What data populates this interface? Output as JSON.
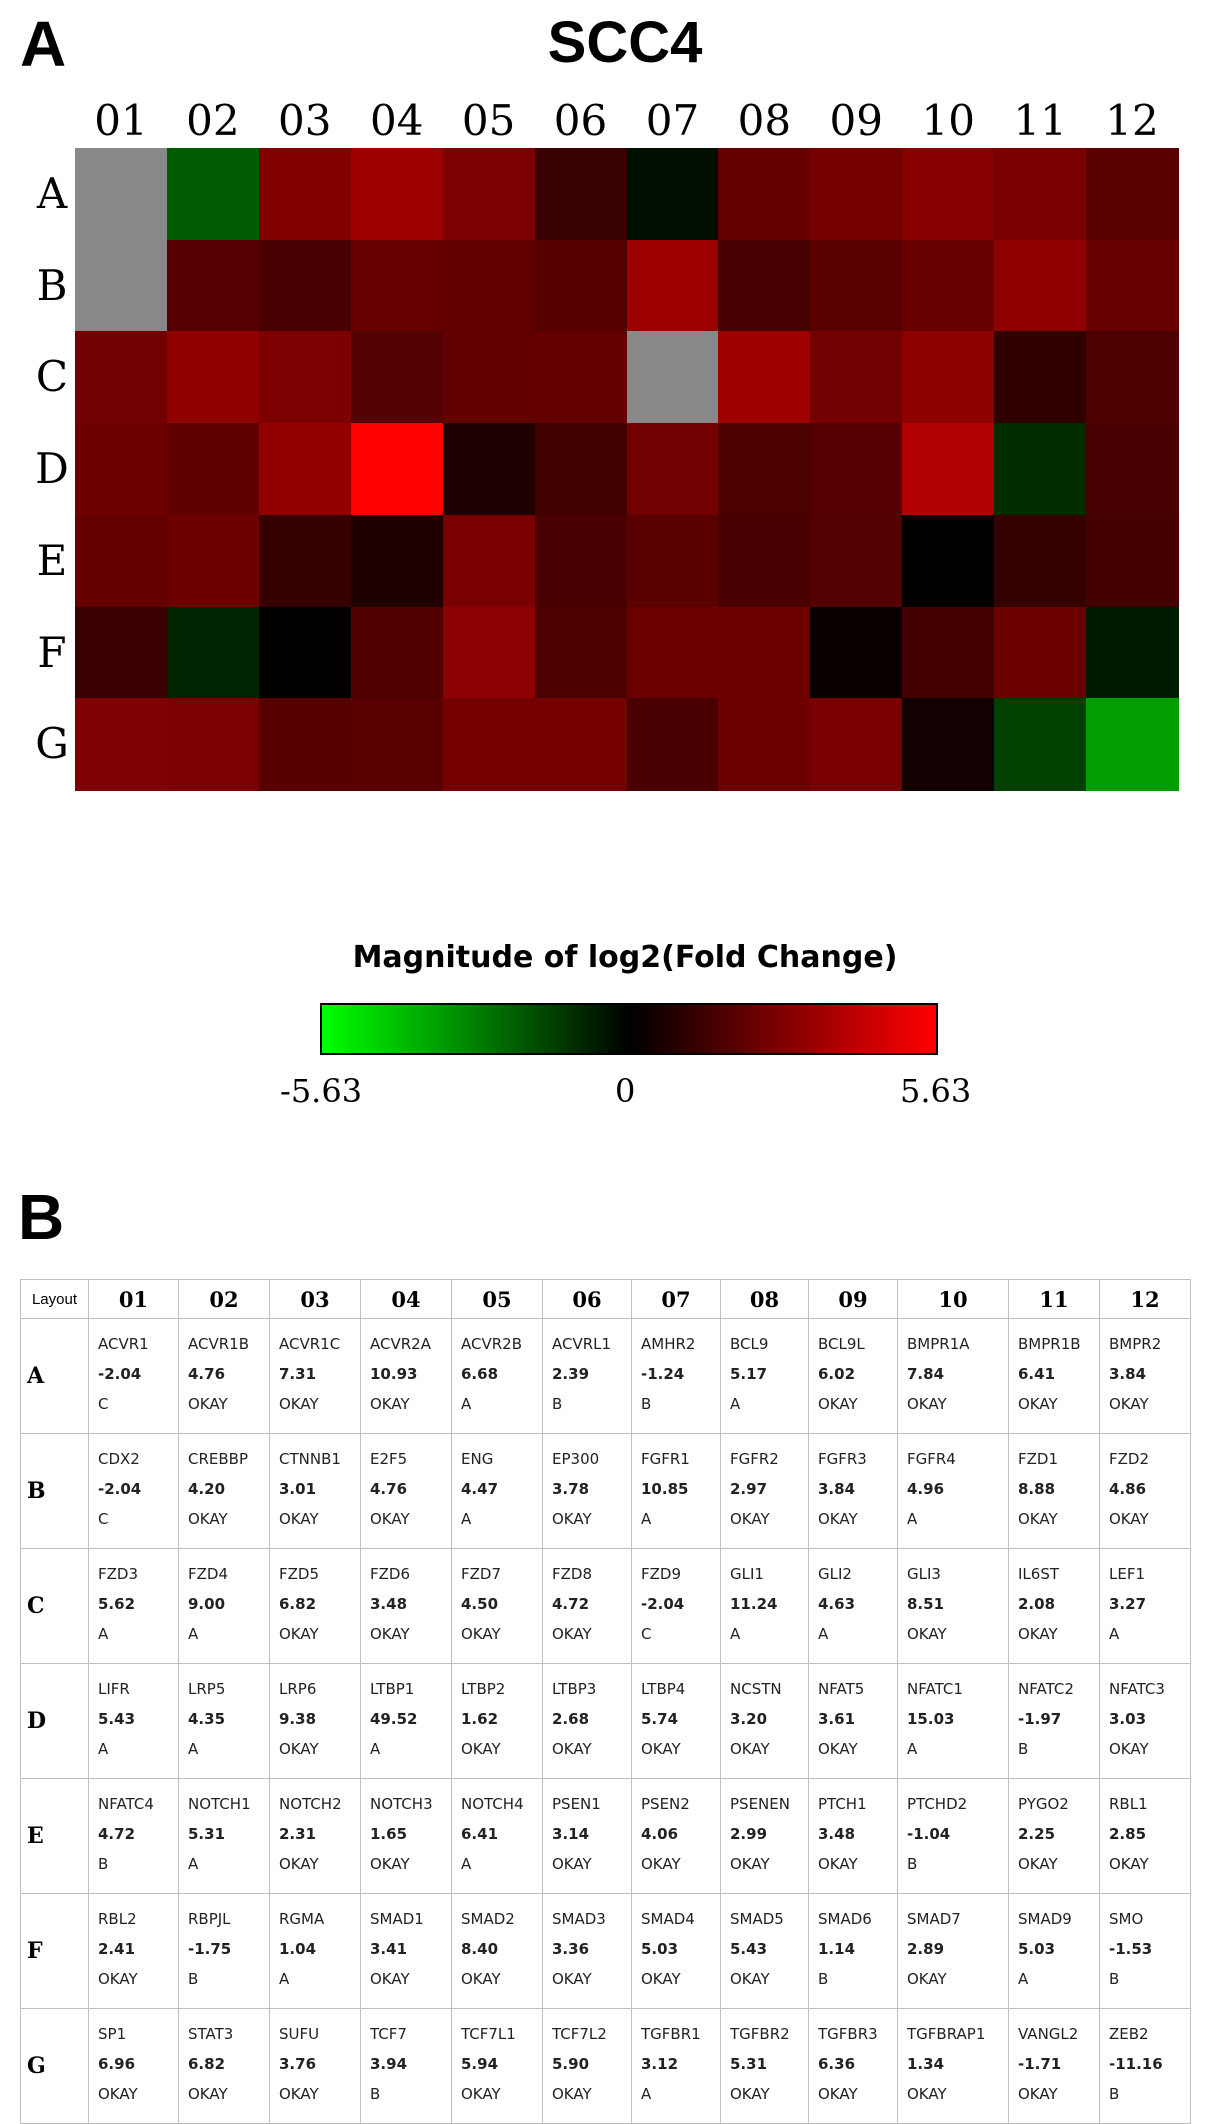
{
  "panel_a_label": "A",
  "panel_b_label": "B",
  "chart_data": {
    "type": "heatmap",
    "title": "SCC4",
    "columns": [
      "01",
      "02",
      "03",
      "04",
      "05",
      "06",
      "07",
      "08",
      "09",
      "10",
      "11",
      "12"
    ],
    "rows": [
      "A",
      "B",
      "C",
      "D",
      "E",
      "F",
      "G"
    ],
    "values": [
      [
        null,
        -2.04,
        2.84,
        3.45,
        2.74,
        1.26,
        -0.31,
        2.22,
        2.59,
        2.97,
        2.68,
        1.94
      ],
      [
        null,
        1.86,
        1.59,
        2.25,
        2.16,
        1.92,
        3.44,
        1.57,
        1.94,
        2.31,
        3.15,
        2.28
      ],
      [
        2.49,
        3.17,
        2.77,
        1.8,
        2.17,
        2.24,
        null,
        3.49,
        2.51,
        3.09,
        1.06,
        1.71
      ],
      [
        2.44,
        2.12,
        3.23,
        5.63,
        0.7,
        1.42,
        2.52,
        1.68,
        1.85,
        3.91,
        -0.98,
        1.6
      ],
      [
        2.24,
        2.41,
        1.21,
        0.72,
        2.69,
        1.65,
        2.02,
        1.58,
        1.8,
        0.06,
        1.17,
        1.51
      ],
      [
        1.27,
        -0.81,
        0.06,
        1.77,
        3.07,
        1.71,
        2.33,
        2.44,
        0.19,
        1.48,
        2.33,
        -0.61
      ],
      [
        2.8,
        2.77,
        1.91,
        1.97,
        2.57,
        2.56,
        1.64,
        2.42,
        2.67,
        0.42,
        -1.43,
        -3.48
      ]
    ],
    "colorbar": {
      "title": "Magnitude of log2(Fold Change)",
      "min": -5.63,
      "mid": 0,
      "max": 5.63,
      "min_label": "-5.63",
      "mid_label": "0",
      "max_label": "5.63",
      "low_color": "#00ff00",
      "mid_color": "#000000",
      "high_color": "#ff0000"
    },
    "missing_color": "#888888"
  },
  "table": {
    "corner_label": "Layout",
    "columns": [
      "01",
      "02",
      "03",
      "04",
      "05",
      "06",
      "07",
      "08",
      "09",
      "10",
      "11",
      "12"
    ],
    "rows": [
      {
        "label": "A",
        "cells": [
          {
            "gene": "ACVR1",
            "value": "-2.04",
            "status": "C"
          },
          {
            "gene": "ACVR1B",
            "value": "4.76",
            "status": "OKAY"
          },
          {
            "gene": "ACVR1C",
            "value": "7.31",
            "status": "OKAY"
          },
          {
            "gene": "ACVR2A",
            "value": "10.93",
            "status": "OKAY"
          },
          {
            "gene": "ACVR2B",
            "value": "6.68",
            "status": "A"
          },
          {
            "gene": "ACVRL1",
            "value": "2.39",
            "status": "B"
          },
          {
            "gene": "AMHR2",
            "value": "-1.24",
            "status": "B"
          },
          {
            "gene": "BCL9",
            "value": "5.17",
            "status": "A"
          },
          {
            "gene": "BCL9L",
            "value": "6.02",
            "status": "OKAY"
          },
          {
            "gene": "BMPR1A",
            "value": "7.84",
            "status": "OKAY"
          },
          {
            "gene": "BMPR1B",
            "value": "6.41",
            "status": "OKAY"
          },
          {
            "gene": "BMPR2",
            "value": "3.84",
            "status": "OKAY"
          }
        ]
      },
      {
        "label": "B",
        "cells": [
          {
            "gene": "CDX2",
            "value": "-2.04",
            "status": "C"
          },
          {
            "gene": "CREBBP",
            "value": "4.20",
            "status": "OKAY"
          },
          {
            "gene": "CTNNB1",
            "value": "3.01",
            "status": "OKAY"
          },
          {
            "gene": "E2F5",
            "value": "4.76",
            "status": "OKAY"
          },
          {
            "gene": "ENG",
            "value": "4.47",
            "status": "A"
          },
          {
            "gene": "EP300",
            "value": "3.78",
            "status": "OKAY"
          },
          {
            "gene": "FGFR1",
            "value": "10.85",
            "status": "A"
          },
          {
            "gene": "FGFR2",
            "value": "2.97",
            "status": "OKAY"
          },
          {
            "gene": "FGFR3",
            "value": "3.84",
            "status": "OKAY"
          },
          {
            "gene": "FGFR4",
            "value": "4.96",
            "status": "A"
          },
          {
            "gene": "FZD1",
            "value": "8.88",
            "status": "OKAY"
          },
          {
            "gene": "FZD2",
            "value": "4.86",
            "status": "OKAY"
          }
        ]
      },
      {
        "label": "C",
        "cells": [
          {
            "gene": "FZD3",
            "value": "5.62",
            "status": "A"
          },
          {
            "gene": "FZD4",
            "value": "9.00",
            "status": "A"
          },
          {
            "gene": "FZD5",
            "value": "6.82",
            "status": "OKAY"
          },
          {
            "gene": "FZD6",
            "value": "3.48",
            "status": "OKAY"
          },
          {
            "gene": "FZD7",
            "value": "4.50",
            "status": "OKAY"
          },
          {
            "gene": "FZD8",
            "value": "4.72",
            "status": "OKAY"
          },
          {
            "gene": "FZD9",
            "value": "-2.04",
            "status": "C"
          },
          {
            "gene": "GLI1",
            "value": "11.24",
            "status": "A"
          },
          {
            "gene": "GLI2",
            "value": "4.63",
            "status": "A"
          },
          {
            "gene": "GLI3",
            "value": "8.51",
            "status": "OKAY"
          },
          {
            "gene": "IL6ST",
            "value": "2.08",
            "status": "OKAY"
          },
          {
            "gene": "LEF1",
            "value": "3.27",
            "status": "A"
          }
        ]
      },
      {
        "label": "D",
        "cells": [
          {
            "gene": "LIFR",
            "value": "5.43",
            "status": "A"
          },
          {
            "gene": "LRP5",
            "value": "4.35",
            "status": "A"
          },
          {
            "gene": "LRP6",
            "value": "9.38",
            "status": "OKAY"
          },
          {
            "gene": "LTBP1",
            "value": "49.52",
            "status": "A"
          },
          {
            "gene": "LTBP2",
            "value": "1.62",
            "status": "OKAY"
          },
          {
            "gene": "LTBP3",
            "value": "2.68",
            "status": "OKAY"
          },
          {
            "gene": "LTBP4",
            "value": "5.74",
            "status": "OKAY"
          },
          {
            "gene": "NCSTN",
            "value": "3.20",
            "status": "OKAY"
          },
          {
            "gene": "NFAT5",
            "value": "3.61",
            "status": "OKAY"
          },
          {
            "gene": "NFATC1",
            "value": "15.03",
            "status": "A"
          },
          {
            "gene": "NFATC2",
            "value": "-1.97",
            "status": "B"
          },
          {
            "gene": "NFATC3",
            "value": "3.03",
            "status": "OKAY"
          }
        ]
      },
      {
        "label": "E",
        "cells": [
          {
            "gene": "NFATC4",
            "value": "4.72",
            "status": "B"
          },
          {
            "gene": "NOTCH1",
            "value": "5.31",
            "status": "A"
          },
          {
            "gene": "NOTCH2",
            "value": "2.31",
            "status": "OKAY"
          },
          {
            "gene": "NOTCH3",
            "value": "1.65",
            "status": "OKAY"
          },
          {
            "gene": "NOTCH4",
            "value": "6.41",
            "status": "A"
          },
          {
            "gene": "PSEN1",
            "value": "3.14",
            "status": "OKAY"
          },
          {
            "gene": "PSEN2",
            "value": "4.06",
            "status": "OKAY"
          },
          {
            "gene": "PSENEN",
            "value": "2.99",
            "status": "OKAY"
          },
          {
            "gene": "PTCH1",
            "value": "3.48",
            "status": "OKAY"
          },
          {
            "gene": "PTCHD2",
            "value": "-1.04",
            "status": "B"
          },
          {
            "gene": "PYGO2",
            "value": "2.25",
            "status": "OKAY"
          },
          {
            "gene": "RBL1",
            "value": "2.85",
            "status": "OKAY"
          }
        ]
      },
      {
        "label": "F",
        "cells": [
          {
            "gene": "RBL2",
            "value": "2.41",
            "status": "OKAY"
          },
          {
            "gene": "RBPJL",
            "value": "-1.75",
            "status": "B"
          },
          {
            "gene": "RGMA",
            "value": "1.04",
            "status": "A"
          },
          {
            "gene": "SMAD1",
            "value": "3.41",
            "status": "OKAY"
          },
          {
            "gene": "SMAD2",
            "value": "8.40",
            "status": "OKAY"
          },
          {
            "gene": "SMAD3",
            "value": "3.36",
            "status": "OKAY"
          },
          {
            "gene": "SMAD4",
            "value": "5.03",
            "status": "OKAY"
          },
          {
            "gene": "SMAD5",
            "value": "5.43",
            "status": "OKAY"
          },
          {
            "gene": "SMAD6",
            "value": "1.14",
            "status": "B"
          },
          {
            "gene": "SMAD7",
            "value": "2.89",
            "status": "OKAY"
          },
          {
            "gene": "SMAD9",
            "value": "5.03",
            "status": "A"
          },
          {
            "gene": "SMO",
            "value": "-1.53",
            "status": "B"
          }
        ]
      },
      {
        "label": "G",
        "cells": [
          {
            "gene": "SP1",
            "value": "6.96",
            "status": "OKAY"
          },
          {
            "gene": "STAT3",
            "value": "6.82",
            "status": "OKAY"
          },
          {
            "gene": "SUFU",
            "value": "3.76",
            "status": "OKAY"
          },
          {
            "gene": "TCF7",
            "value": "3.94",
            "status": "B"
          },
          {
            "gene": "TCF7L1",
            "value": "5.94",
            "status": "OKAY"
          },
          {
            "gene": "TCF7L2",
            "value": "5.90",
            "status": "OKAY"
          },
          {
            "gene": "TGFBR1",
            "value": "3.12",
            "status": "A"
          },
          {
            "gene": "TGFBR2",
            "value": "5.31",
            "status": "OKAY"
          },
          {
            "gene": "TGFBR3",
            "value": "6.36",
            "status": "OKAY"
          },
          {
            "gene": "TGFBRAP1",
            "value": "1.34",
            "status": "OKAY"
          },
          {
            "gene": "VANGL2",
            "value": "-1.71",
            "status": "OKAY"
          },
          {
            "gene": "ZEB2",
            "value": "-11.16",
            "status": "B"
          }
        ]
      }
    ]
  }
}
